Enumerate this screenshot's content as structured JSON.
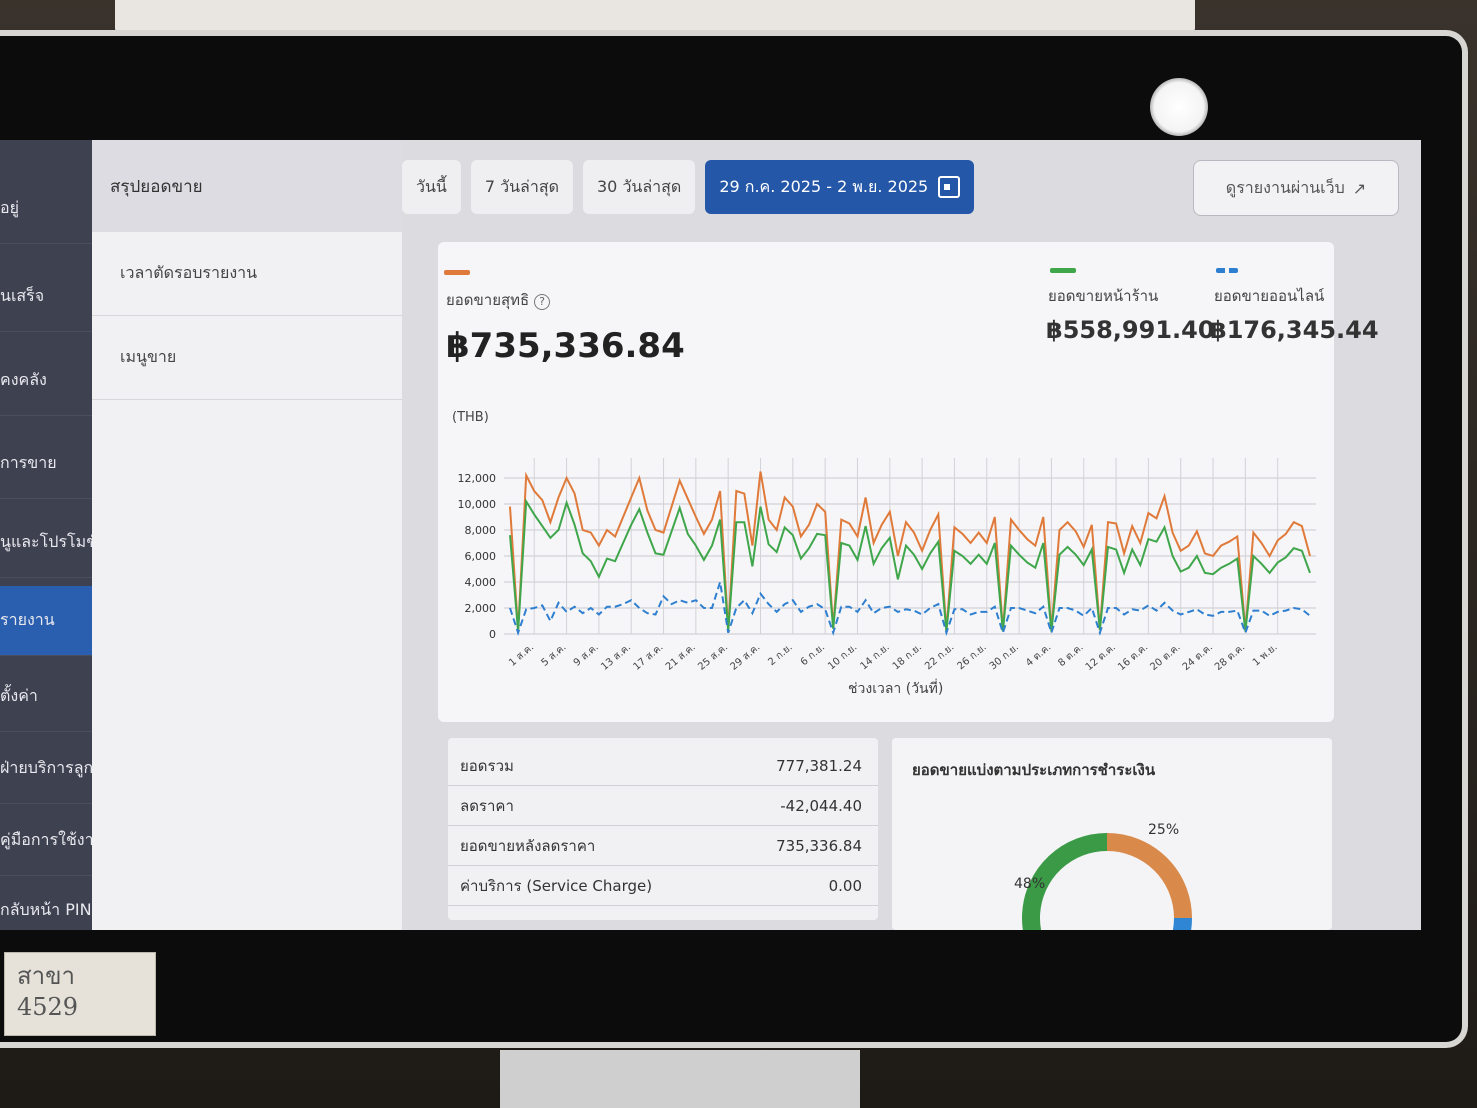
{
  "sidebar": {
    "items": [
      {
        "label": "อยู่",
        "top": 20
      },
      {
        "label": "นเสร็จ",
        "top": 108
      },
      {
        "label": "คงคลัง",
        "top": 192
      },
      {
        "label": "การขาย",
        "top": 275
      },
      {
        "label": "นูและโปรโมชั่น",
        "top": 354
      },
      {
        "label": "รายงาน",
        "top": 432,
        "active": true
      },
      {
        "label": "ตั้งค่า",
        "top": 508
      },
      {
        "label": "ฝ่ายบริการลูกค้า",
        "top": 580
      },
      {
        "label": "คู่มือการใช้งาน",
        "top": 652
      },
      {
        "label": "กลับหน้า PIN",
        "top": 722
      }
    ]
  },
  "subnav": {
    "header": "สรุปยอดขาย",
    "items": [
      "เวลาตัดรอบรายงาน",
      "เมนูขาย"
    ]
  },
  "tabs": {
    "today": "วันนี้",
    "last7": "7 วันล่าสุด",
    "last30": "30 วันล่าสุด",
    "range": "29 ก.ค. 2025 - 2 พ.ย. 2025"
  },
  "web_report_label": "ดูรายงานผ่านเว็บ",
  "summary_top": {
    "net_label": "ยอดขายสุทธิ",
    "net_value": "฿735,336.84",
    "store_label": "ยอดขายหน้าร้าน",
    "store_value": "฿558,991.40",
    "online_label": "ยอดขายออนไลน์",
    "online_value": "฿176,345.44"
  },
  "colors": {
    "net": "#e07a3a",
    "store": "#3fa64b",
    "online": "#2f7fd0",
    "accent": "#2457a8"
  },
  "chart_data": {
    "type": "line",
    "unit_label": "(THB)",
    "xlabel": "ช่วงเวลา (วันที่)",
    "ylim": [
      0,
      12000
    ],
    "yticks": [
      "0",
      "2,000",
      "4,000",
      "6,000",
      "8,000",
      "10,000",
      "12,000"
    ],
    "ytick_values": [
      0,
      2000,
      4000,
      6000,
      8000,
      10000,
      12000
    ],
    "xtick_labels": [
      "1 ส.ค.",
      "5 ส.ค.",
      "9 ส.ค.",
      "13 ส.ค.",
      "17 ส.ค.",
      "21 ส.ค.",
      "25 ส.ค.",
      "29 ส.ค.",
      "2 ก.ย.",
      "6 ก.ย.",
      "10 ก.ย.",
      "14 ก.ย.",
      "18 ก.ย.",
      "22 ก.ย.",
      "26 ก.ย.",
      "30 ก.ย.",
      "4 ต.ค.",
      "8 ต.ค.",
      "12 ต.ค.",
      "16 ต.ค.",
      "20 ต.ค.",
      "24 ต.ค.",
      "28 ต.ค.",
      "1 พ.ย."
    ],
    "series": [
      {
        "key": "net",
        "values": [
          9800,
          300,
          12200,
          11000,
          10300,
          8600,
          10500,
          12000,
          10800,
          8000,
          7800,
          6800,
          8000,
          7500,
          9000,
          10500,
          12000,
          9500,
          8000,
          7800,
          9800,
          11800,
          10400,
          9000,
          7700,
          8800,
          11000,
          300,
          11000,
          10800,
          6800,
          12500,
          8800,
          8000,
          10500,
          9800,
          7500,
          8400,
          10000,
          9400,
          500,
          8800,
          8500,
          7500,
          10500,
          7000,
          8400,
          9400,
          6000,
          8600,
          7800,
          6400,
          8000,
          9200,
          300,
          8200,
          7700,
          7000,
          7800,
          7000,
          9000,
          300,
          8800,
          8000,
          7300,
          6800,
          9000,
          300,
          8000,
          8600,
          7900,
          6700,
          8400,
          400,
          8600,
          8500,
          6200,
          8300,
          7000,
          9300,
          8900,
          10600,
          7800,
          6400,
          6800,
          7900,
          6200,
          6000,
          6800,
          7100,
          7500,
          300,
          7800,
          7000,
          6000,
          7200,
          7700,
          8600,
          8300,
          6000
        ]
      },
      {
        "key": "store",
        "values": [
          7600,
          200,
          10200,
          9200,
          8300,
          7400,
          8000,
          10100,
          8400,
          6200,
          5600,
          4400,
          5800,
          5600,
          7000,
          8400,
          9600,
          7800,
          6200,
          6100,
          7900,
          9700,
          7700,
          6800,
          5700,
          6800,
          8800,
          200,
          8600,
          8600,
          5200,
          9800,
          6900,
          6300,
          8200,
          7600,
          5800,
          6600,
          7700,
          7600,
          400,
          7000,
          6800,
          5700,
          8300,
          5400,
          6600,
          7400,
          4200,
          6800,
          6100,
          5000,
          6200,
          7100,
          200,
          6400,
          6000,
          5400,
          6100,
          5400,
          7000,
          200,
          6800,
          6100,
          5500,
          5100,
          7000,
          200,
          6100,
          6700,
          6100,
          5300,
          6500,
          300,
          6700,
          6500,
          4700,
          6500,
          5300,
          7300,
          7100,
          8200,
          6000,
          4800,
          5100,
          6000,
          4700,
          4600,
          5100,
          5400,
          5800,
          200,
          6000,
          5400,
          4700,
          5500,
          5900,
          6600,
          6400,
          4700
        ]
      },
      {
        "key": "online",
        "values": [
          2000,
          100,
          1900,
          2000,
          2200,
          1000,
          2400,
          1700,
          2100,
          1600,
          2000,
          1500,
          2100,
          2100,
          2300,
          2600,
          2000,
          1600,
          1500,
          2900,
          2300,
          2600,
          2400,
          2600,
          2000,
          2000,
          4000,
          100,
          2000,
          2600,
          1600,
          3100,
          2300,
          1700,
          2300,
          2600,
          1700,
          2100,
          2300,
          1900,
          100,
          2100,
          2100,
          1700,
          2600,
          1600,
          2000,
          2100,
          1700,
          1900,
          1800,
          1500,
          2000,
          2300,
          100,
          1900,
          1900,
          1500,
          1700,
          1700,
          2100,
          100,
          2000,
          2000,
          1800,
          1600,
          2100,
          100,
          2000,
          2000,
          1800,
          1400,
          2000,
          100,
          2000,
          2000,
          1500,
          1900,
          1800,
          2200,
          1800,
          2400,
          1800,
          1500,
          1700,
          1900,
          1500,
          1400,
          1700,
          1700,
          1800,
          100,
          1800,
          1800,
          1400,
          1700,
          1800,
          2000,
          1900,
          1400
        ]
      }
    ]
  },
  "summary_table": [
    {
      "label": "ยอดรวม",
      "value": "777,381.24"
    },
    {
      "label": "ลดราคา",
      "value": "-42,044.40"
    },
    {
      "label": "ยอดขายหลังลดราคา",
      "value": "735,336.84"
    },
    {
      "label": "ค่าบริการ (Service Charge)",
      "value": "0.00"
    }
  ],
  "payment": {
    "title": "ยอดขายแบ่งตามประเภทการชำระเงิน",
    "slices": [
      {
        "label": "48%",
        "value": 48,
        "color": "#3a9a45"
      },
      {
        "label": "25%",
        "value": 25,
        "color": "#d98a4a"
      },
      {
        "label": "",
        "value": 27,
        "color": "#2f86d4"
      }
    ]
  },
  "sticker_text": [
    "สาขา",
    "4529"
  ]
}
